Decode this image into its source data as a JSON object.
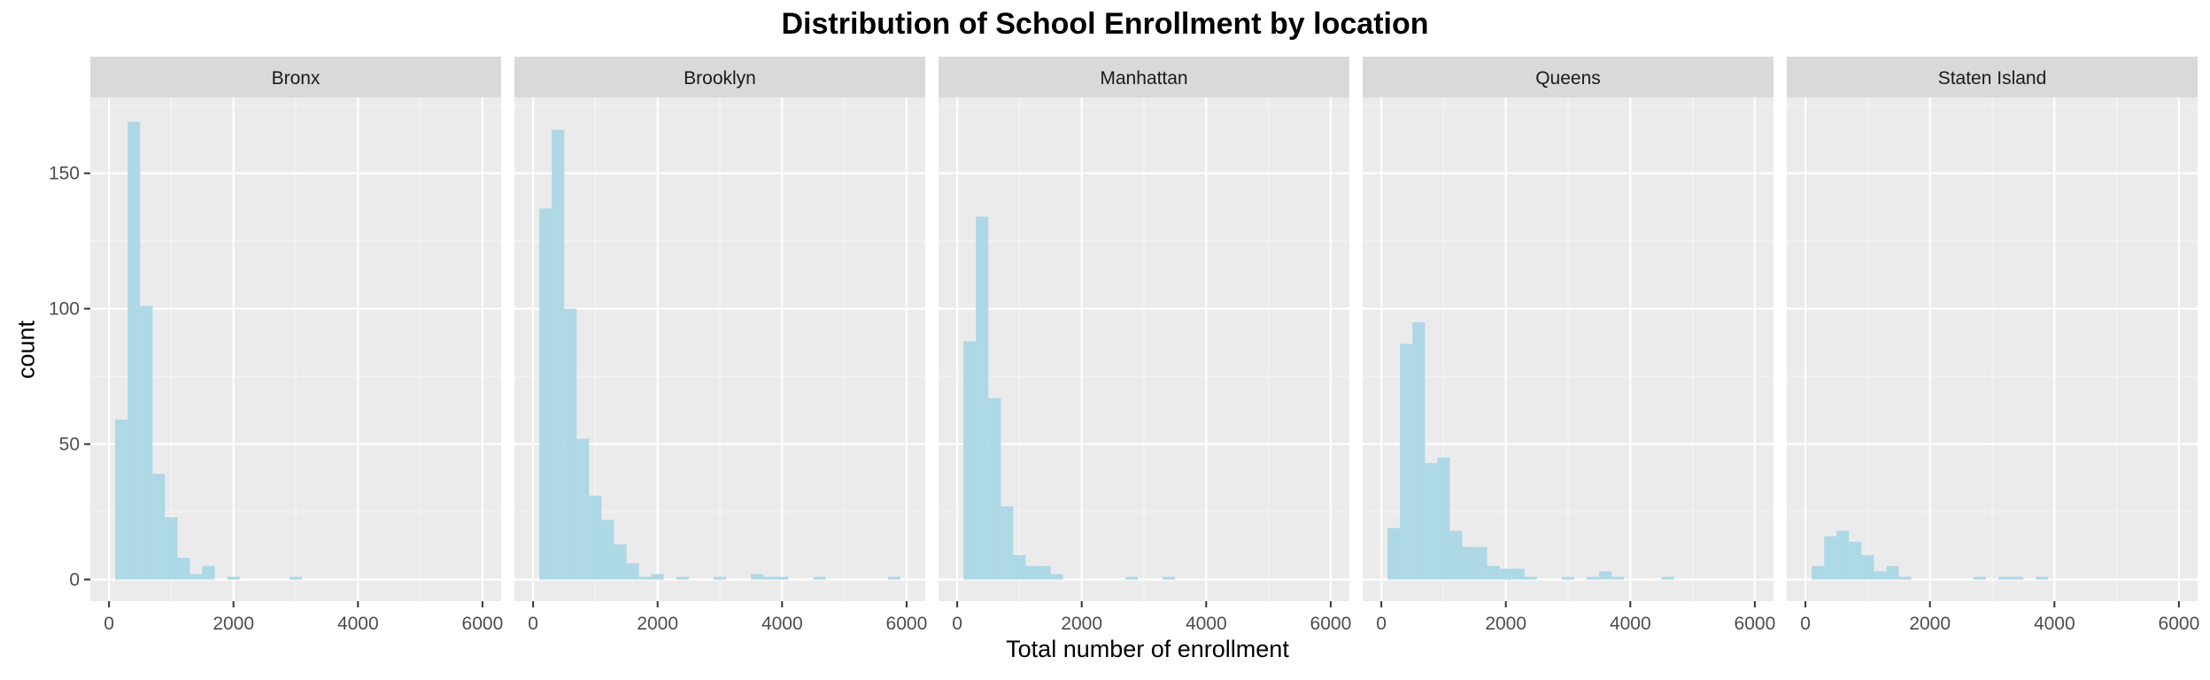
{
  "chart_data": {
    "type": "histogram",
    "title": "Distribution of School Enrollment by location",
    "xlabel": "Total number of enrollment",
    "ylabel": "count",
    "xlim": [
      -300,
      6300
    ],
    "ylim": [
      -8,
      178
    ],
    "x_ticks": [
      0,
      2000,
      4000,
      6000
    ],
    "y_ticks": [
      0,
      50,
      100,
      150
    ],
    "bin_width": 200,
    "bin_starts": [
      100,
      300,
      500,
      700,
      900,
      1100,
      1300,
      1500,
      1700,
      1900,
      2100,
      2300,
      2500,
      2700,
      2900,
      3100,
      3300,
      3500,
      3700,
      3900,
      4100,
      4300,
      4500,
      4700,
      4900,
      5100,
      5300,
      5500,
      5700
    ],
    "bar_color": "#add8e6",
    "panel_bg": "#ebebeb",
    "strip_bg": "#d9d9d9",
    "grid": true,
    "series": [
      {
        "name": "Bronx",
        "values": [
          59,
          169,
          101,
          39,
          23,
          8,
          2,
          5,
          0,
          1,
          0,
          0,
          0,
          0,
          1,
          0,
          0,
          0,
          0,
          0,
          0,
          0,
          0,
          0,
          0,
          0,
          0,
          0,
          0
        ]
      },
      {
        "name": "Brooklyn",
        "values": [
          137,
          166,
          100,
          52,
          31,
          22,
          13,
          6,
          1,
          2,
          0,
          1,
          0,
          0,
          1,
          0,
          0,
          2,
          1,
          1,
          0,
          0,
          1,
          0,
          0,
          0,
          0,
          0,
          1
        ]
      },
      {
        "name": "Manhattan",
        "values": [
          88,
          134,
          67,
          27,
          9,
          5,
          5,
          2,
          0,
          0,
          0,
          0,
          0,
          1,
          0,
          0,
          1,
          0,
          0,
          0,
          0,
          0,
          0,
          0,
          0,
          0,
          0,
          0,
          0
        ]
      },
      {
        "name": "Queens",
        "values": [
          19,
          87,
          95,
          43,
          45,
          18,
          12,
          12,
          5,
          4,
          4,
          1,
          0,
          0,
          1,
          0,
          1,
          3,
          1,
          0,
          0,
          0,
          1,
          0,
          0,
          0,
          0,
          0,
          0
        ]
      },
      {
        "name": "Staten Island",
        "values": [
          5,
          16,
          18,
          14,
          9,
          3,
          5,
          1,
          0,
          0,
          0,
          0,
          0,
          1,
          0,
          1,
          1,
          0,
          1,
          0,
          0,
          0,
          0,
          0,
          0,
          0,
          0,
          0,
          0
        ]
      }
    ]
  }
}
